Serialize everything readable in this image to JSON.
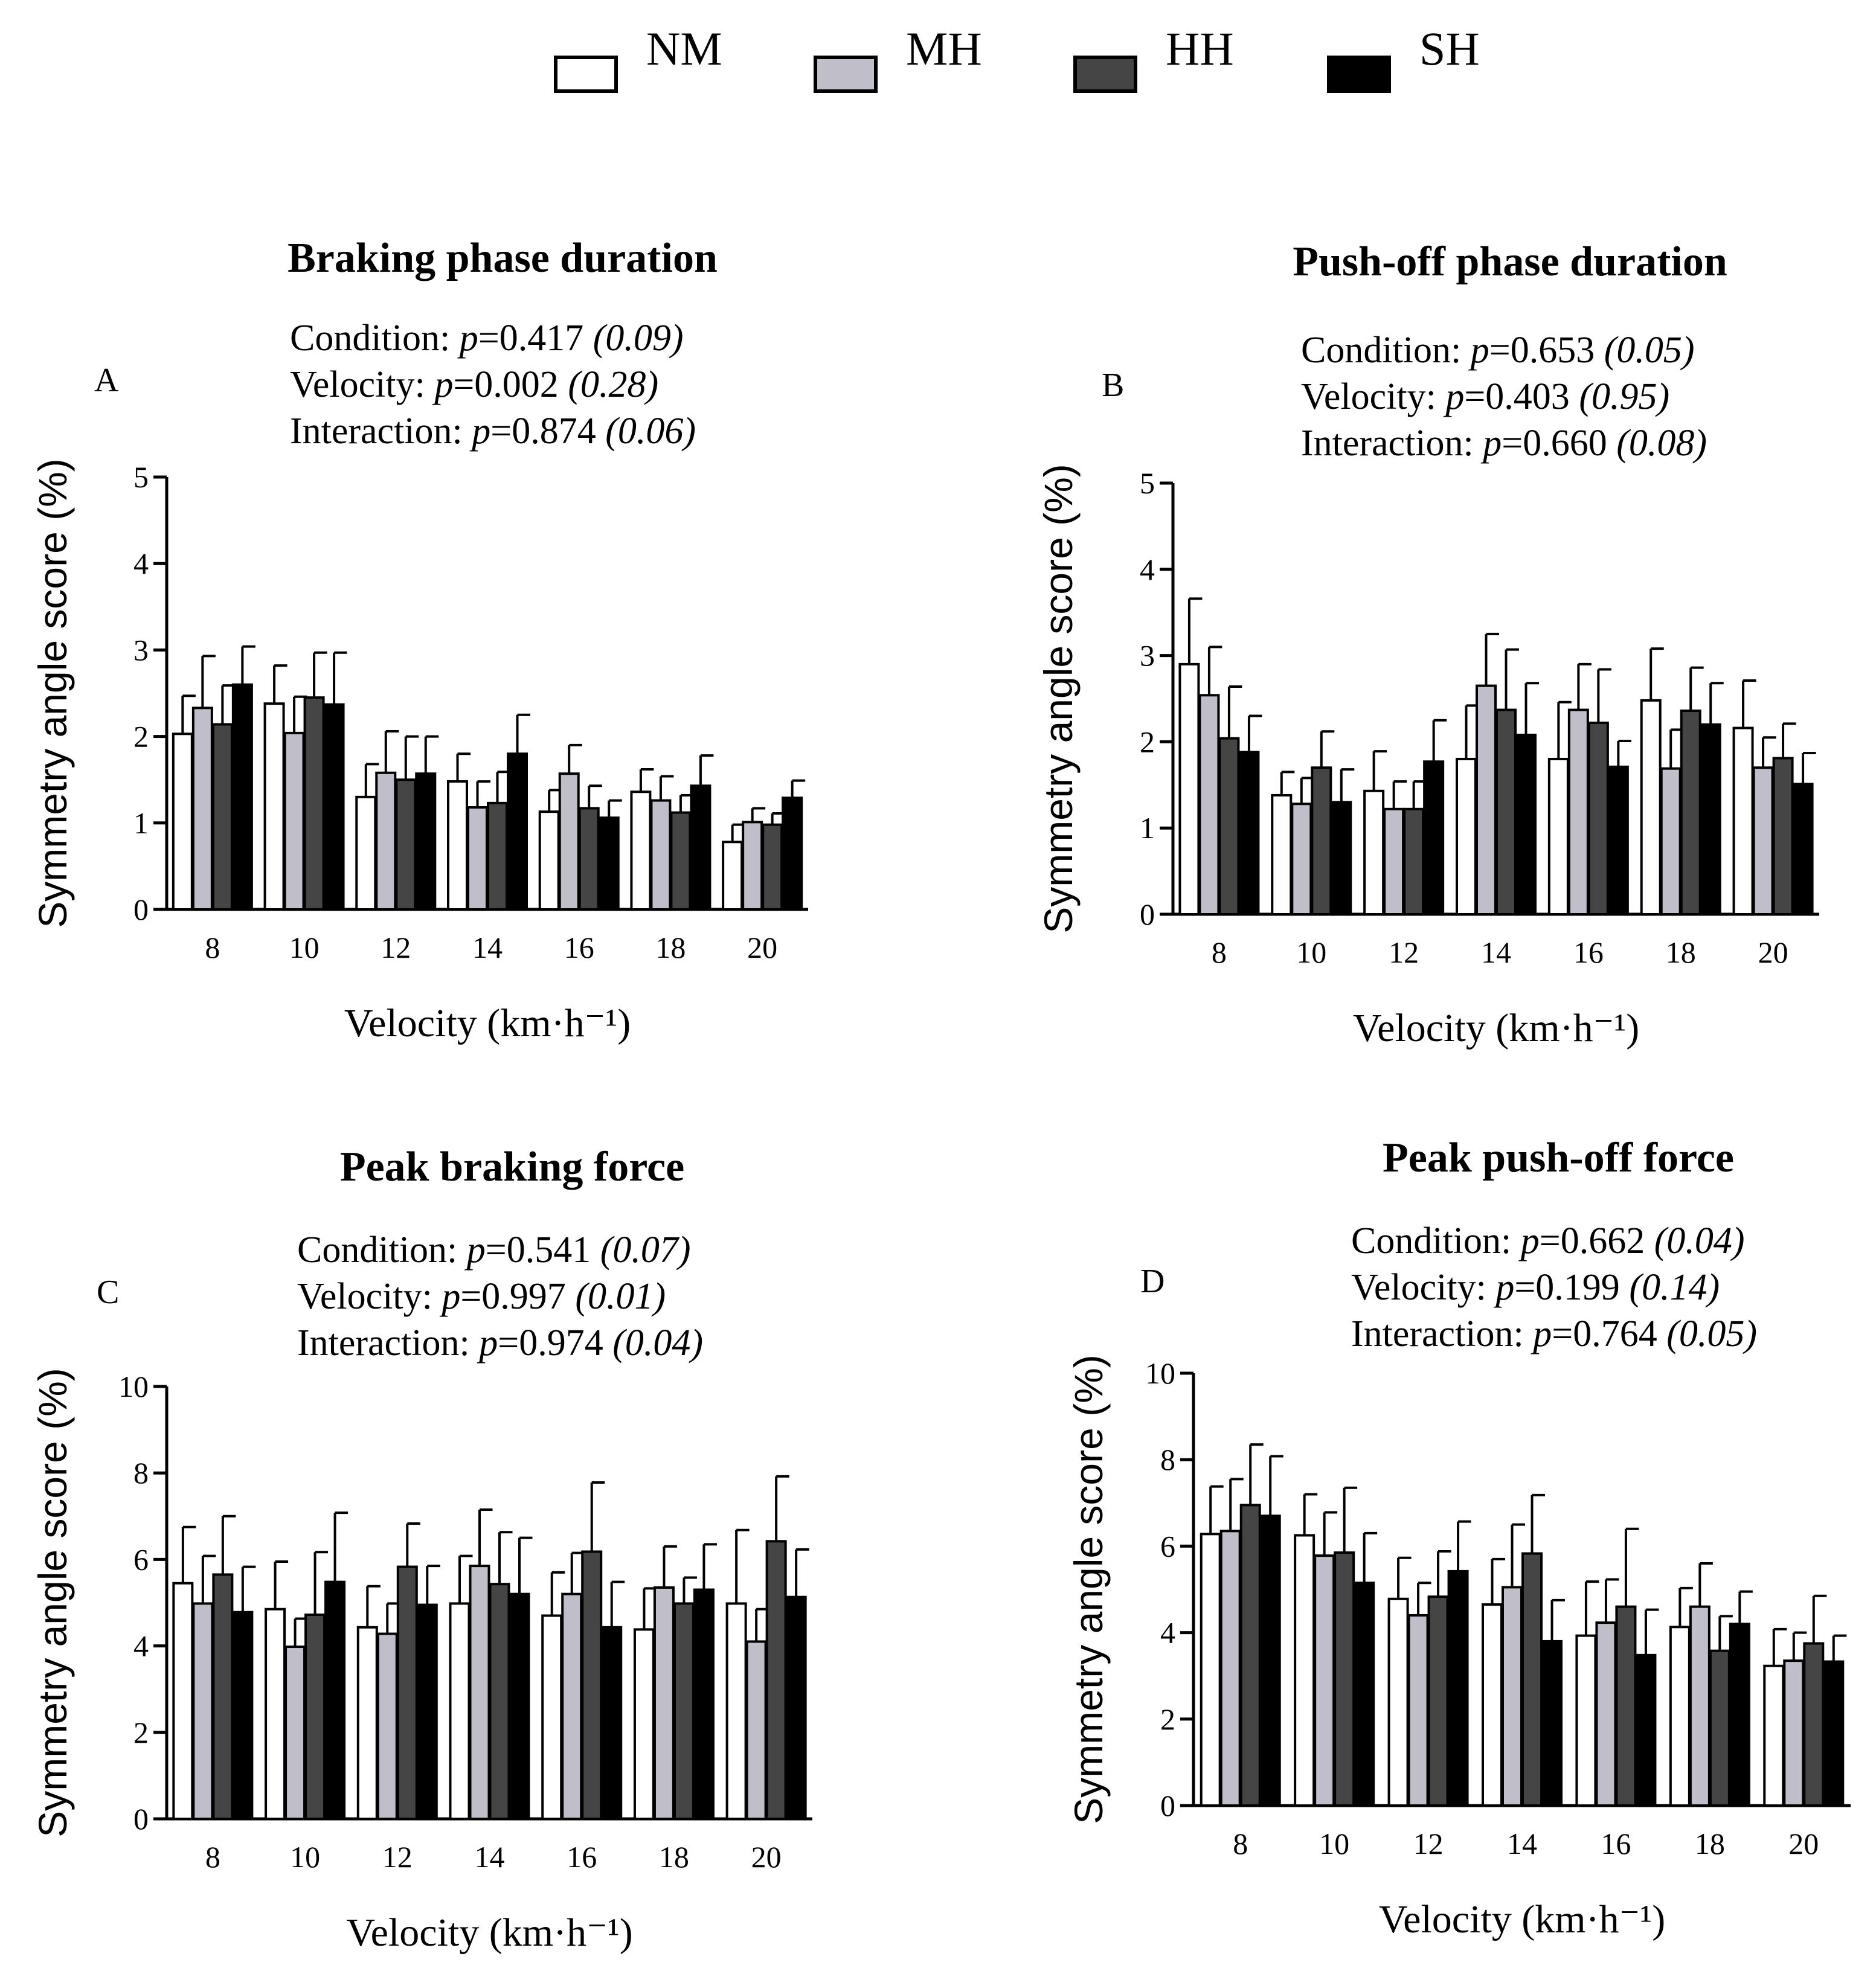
{
  "legend": [
    {
      "label": "NM",
      "color": "#ffffff"
    },
    {
      "label": "MH",
      "color": "#c0bec9"
    },
    {
      "label": "HH",
      "color": "#454545"
    },
    {
      "label": "SH",
      "color": "#000000"
    }
  ],
  "chart_data": [
    {
      "type": "bar",
      "panel": "A",
      "title": "Braking phase duration",
      "stats": [
        {
          "label": "Condition: ",
          "p": "0.417",
          "eta": "(0.09)"
        },
        {
          "label": "Velocity: ",
          "p": "0.002",
          "eta": "(0.28)"
        },
        {
          "label": "Interaction: ",
          "p": "0.874",
          "eta": "(0.06)"
        }
      ],
      "xlabel": "Velocity (km·h⁻¹)",
      "ylabel": "Symmetry angle  score (%)",
      "categories": [
        "8",
        "10",
        "12",
        "14",
        "16",
        "18",
        "20"
      ],
      "ylim": [
        0,
        5
      ],
      "yticks": [
        0,
        1,
        2,
        3,
        4,
        5
      ],
      "series": [
        {
          "name": "NM",
          "values": [
            2.03,
            2.38,
            1.3,
            1.48,
            1.13,
            1.36,
            0.78
          ],
          "errors": [
            0.44,
            0.44,
            0.38,
            0.32,
            0.25,
            0.26,
            0.2
          ]
        },
        {
          "name": "MH",
          "values": [
            2.33,
            2.04,
            1.58,
            1.18,
            1.57,
            1.26,
            1.01
          ],
          "errors": [
            0.6,
            0.42,
            0.48,
            0.3,
            0.33,
            0.28,
            0.16
          ]
        },
        {
          "name": "HH",
          "values": [
            2.14,
            2.45,
            1.5,
            1.23,
            1.17,
            1.12,
            0.98
          ],
          "errors": [
            0.45,
            0.52,
            0.5,
            0.36,
            0.26,
            0.2,
            0.13
          ]
        },
        {
          "name": "SH",
          "values": [
            2.6,
            2.37,
            1.57,
            1.8,
            1.06,
            1.43,
            1.29
          ],
          "errors": [
            0.44,
            0.6,
            0.43,
            0.45,
            0.2,
            0.35,
            0.2
          ]
        }
      ]
    },
    {
      "type": "bar",
      "panel": "B",
      "title": "Push-off phase duration",
      "stats": [
        {
          "label": "Condition: ",
          "p": "0.653",
          "eta": "(0.05)"
        },
        {
          "label": "Velocity: ",
          "p": "0.403",
          "eta": "(0.95)"
        },
        {
          "label": "Interaction: ",
          "p": "0.660",
          "eta": "(0.08)"
        }
      ],
      "xlabel": "Velocity (km·h⁻¹)",
      "ylabel": "Symmetry angle  score (%)",
      "categories": [
        "8",
        "10",
        "12",
        "14",
        "16",
        "18",
        "20"
      ],
      "ylim": [
        0,
        5
      ],
      "yticks": [
        0,
        1,
        2,
        3,
        4,
        5
      ],
      "series": [
        {
          "name": "NM",
          "values": [
            2.9,
            1.38,
            1.43,
            1.8,
            1.8,
            2.48,
            2.16
          ],
          "errors": [
            0.76,
            0.27,
            0.46,
            0.62,
            0.66,
            0.6,
            0.55
          ]
        },
        {
          "name": "MH",
          "values": [
            2.54,
            1.28,
            1.22,
            2.65,
            2.37,
            1.69,
            1.7
          ],
          "errors": [
            0.56,
            0.3,
            0.32,
            0.6,
            0.53,
            0.45,
            0.35
          ]
        },
        {
          "name": "HH",
          "values": [
            2.04,
            1.7,
            1.22,
            2.37,
            2.22,
            2.36,
            1.81
          ],
          "errors": [
            0.6,
            0.42,
            0.32,
            0.7,
            0.62,
            0.5,
            0.4
          ]
        },
        {
          "name": "SH",
          "values": [
            1.88,
            1.3,
            1.77,
            2.08,
            1.71,
            2.2,
            1.51
          ],
          "errors": [
            0.42,
            0.38,
            0.48,
            0.6,
            0.3,
            0.48,
            0.36
          ]
        }
      ]
    },
    {
      "type": "bar",
      "panel": "C",
      "title": "Peak braking force",
      "stats": [
        {
          "label": "Condition: ",
          "p": "0.541",
          "eta": "(0.07)"
        },
        {
          "label": "Velocity: ",
          "p": "0.997",
          "eta": "(0.01)"
        },
        {
          "label": "Interaction: ",
          "p": "0.974",
          "eta": "(0.04)"
        }
      ],
      "xlabel": "Velocity (km·h⁻¹)",
      "ylabel": "Symmetry angle  score (%)",
      "categories": [
        "8",
        "10",
        "12",
        "14",
        "16",
        "18",
        "20"
      ],
      "ylim": [
        0,
        10
      ],
      "yticks": [
        0,
        2,
        4,
        6,
        8,
        10
      ],
      "series": [
        {
          "name": "NM",
          "values": [
            5.45,
            4.85,
            4.43,
            4.98,
            4.7,
            4.38,
            4.98
          ],
          "errors": [
            1.3,
            1.1,
            0.95,
            1.1,
            1.0,
            0.95,
            1.7
          ]
        },
        {
          "name": "MH",
          "values": [
            4.98,
            3.98,
            4.28,
            5.85,
            5.2,
            5.35,
            4.1
          ],
          "errors": [
            1.1,
            0.65,
            0.7,
            1.3,
            0.95,
            0.95,
            0.75
          ]
        },
        {
          "name": "HH",
          "values": [
            5.65,
            4.72,
            5.83,
            5.43,
            6.18,
            4.98,
            6.42
          ],
          "errors": [
            1.35,
            1.45,
            1.0,
            1.2,
            1.6,
            0.6,
            1.5
          ]
        },
        {
          "name": "SH",
          "values": [
            4.78,
            5.48,
            4.95,
            5.2,
            4.43,
            5.3,
            5.13
          ],
          "errors": [
            1.05,
            1.6,
            0.9,
            1.3,
            1.05,
            1.05,
            1.1
          ]
        }
      ]
    },
    {
      "type": "bar",
      "panel": "D",
      "title": "Peak push-off force",
      "stats": [
        {
          "label": "Condition: ",
          "p": "0.662",
          "eta": "(0.04)"
        },
        {
          "label": "Velocity: ",
          "p": "0.199",
          "eta": "(0.14)"
        },
        {
          "label": "Interaction: ",
          "p": "0.764",
          "eta": "(0.05)"
        }
      ],
      "xlabel": "Velocity (km·h⁻¹)",
      "ylabel": "Symmetry angle  score (%)",
      "categories": [
        "8",
        "10",
        "12",
        "14",
        "16",
        "18",
        "20"
      ],
      "ylim": [
        0,
        10
      ],
      "yticks": [
        0,
        2,
        4,
        6,
        8,
        10
      ],
      "series": [
        {
          "name": "NM",
          "values": [
            6.28,
            6.25,
            4.78,
            4.65,
            3.93,
            4.13,
            3.23
          ],
          "errors": [
            1.1,
            0.95,
            0.95,
            1.05,
            1.25,
            0.9,
            0.85
          ]
        },
        {
          "name": "MH",
          "values": [
            6.35,
            5.78,
            4.4,
            5.05,
            4.23,
            4.6,
            3.35
          ],
          "errors": [
            1.2,
            1.0,
            0.75,
            1.45,
            1.0,
            1.0,
            0.65
          ]
        },
        {
          "name": "HH",
          "values": [
            6.95,
            5.85,
            4.83,
            5.83,
            4.6,
            3.58,
            3.75
          ],
          "errors": [
            1.4,
            1.5,
            1.05,
            1.35,
            1.8,
            0.8,
            1.1
          ]
        },
        {
          "name": "SH",
          "values": [
            6.7,
            5.15,
            5.42,
            3.8,
            3.48,
            4.2,
            3.33
          ],
          "errors": [
            1.38,
            1.15,
            1.15,
            0.95,
            1.05,
            0.75,
            0.6
          ]
        }
      ]
    }
  ]
}
